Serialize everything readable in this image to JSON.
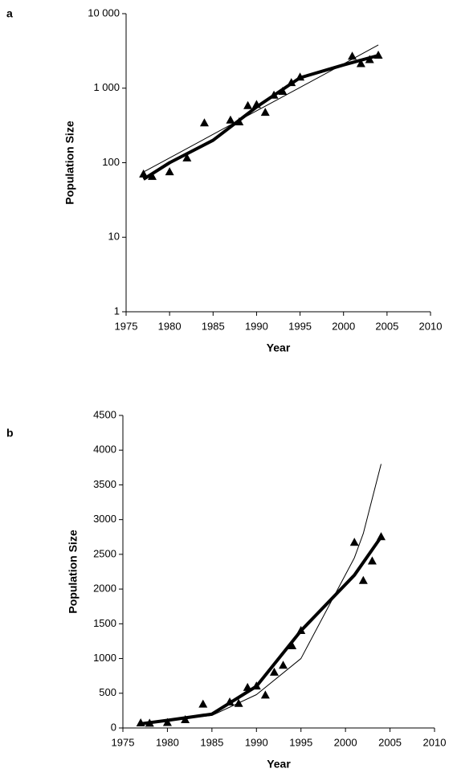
{
  "chart_data": [
    {
      "type": "scatter",
      "label": "a",
      "xlabel": "Year",
      "ylabel": "Population Size",
      "yscale": "log",
      "xlim": [
        1975,
        2010
      ],
      "xticks": [
        1975,
        1980,
        1985,
        1990,
        1995,
        2000,
        2005,
        2010
      ],
      "ylim": [
        1,
        10000
      ],
      "yticks": [
        1,
        10,
        100,
        {
          "value": 1000,
          "label": "1 000"
        },
        {
          "value": 10000,
          "label": "10 000"
        }
      ],
      "points": {
        "color": "#000000",
        "x": [
          1977,
          1978,
          1980,
          1982,
          1984,
          1987,
          1988,
          1989,
          1990,
          1991,
          1992,
          1993,
          1994,
          1995,
          2001,
          2002,
          2003,
          2004
        ],
        "values": [
          70,
          65,
          75,
          115,
          340,
          370,
          350,
          580,
          600,
          470,
          800,
          900,
          1180,
          1400,
          2670,
          2120,
          2400,
          2750
        ]
      },
      "lines": [
        {
          "color": "#000000",
          "width": 4,
          "x": [
            1977,
            1980,
            1985,
            1990,
            1995,
            2000,
            2004
          ],
          "values": [
            60,
            100,
            200,
            560,
            1380,
            2050,
            2750
          ]
        },
        {
          "color": "#000000",
          "width": 1,
          "x": [
            1977,
            1980,
            1985,
            1990,
            1995,
            2000,
            2004
          ],
          "values": [
            75,
            116,
            240,
            496,
            1024,
            2116,
            3800
          ]
        }
      ]
    },
    {
      "type": "scatter",
      "label": "b",
      "xlabel": "Year",
      "ylabel": "Population Size",
      "yscale": "linear",
      "xlim": [
        1975,
        2010
      ],
      "xticks": [
        1975,
        1980,
        1985,
        1990,
        1995,
        2000,
        2005,
        2010
      ],
      "ylim": [
        0,
        4500
      ],
      "yticks": [
        0,
        500,
        1000,
        1500,
        2000,
        2500,
        3000,
        3500,
        4000,
        4500
      ],
      "points": {
        "color": "#000000",
        "x": [
          1977,
          1978,
          1980,
          1982,
          1984,
          1987,
          1988,
          1989,
          1990,
          1991,
          1992,
          1993,
          1994,
          1995,
          2001,
          2002,
          2003,
          2004
        ],
        "values": [
          70,
          65,
          75,
          115,
          340,
          370,
          350,
          580,
          600,
          470,
          800,
          900,
          1180,
          1400,
          2670,
          2120,
          2400,
          2750
        ]
      },
      "lines": [
        {
          "color": "#000000",
          "width": 4,
          "x": [
            1977,
            1980,
            1985,
            1990,
            1995,
            2001,
            2004
          ],
          "values": [
            60,
            110,
            200,
            600,
            1400,
            2200,
            2750
          ]
        },
        {
          "color": "#000000",
          "width": 1,
          "x": [
            1977,
            1985,
            1990,
            1995,
            2001,
            2002,
            2004
          ],
          "values": [
            75,
            180,
            480,
            1000,
            2450,
            2800,
            3800
          ]
        }
      ]
    }
  ]
}
